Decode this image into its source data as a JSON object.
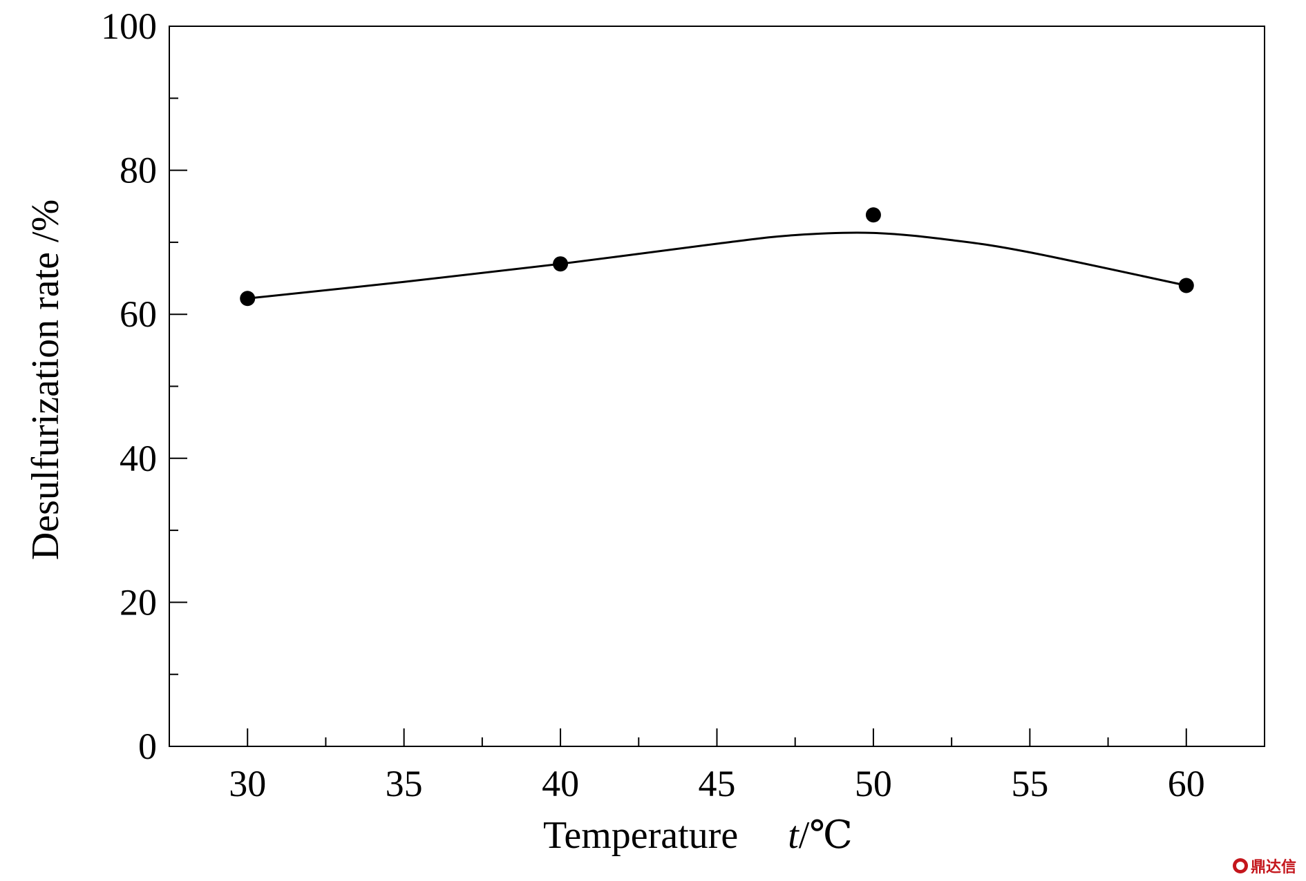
{
  "chart_data": {
    "type": "scatter",
    "title": "",
    "xlabel": "Temperature",
    "xlabel_symbol": "t",
    "xlabel_unit": "/℃",
    "ylabel": "Desulfurization rate /%",
    "xlim": [
      27.5,
      62.5
    ],
    "ylim": [
      0,
      100
    ],
    "x_ticks": [
      30,
      35,
      40,
      45,
      50,
      55,
      60
    ],
    "y_ticks": [
      0,
      20,
      40,
      60,
      80,
      100
    ],
    "grid": false,
    "legend": "none",
    "series": [
      {
        "points": [
          {
            "x": 30,
            "y": 62.2
          },
          {
            "x": 40,
            "y": 67.0
          },
          {
            "x": 50,
            "y": 73.8
          },
          {
            "x": 60,
            "y": 64.0
          }
        ]
      }
    ],
    "fit_curve": [
      {
        "x": 30,
        "y": 62.2
      },
      {
        "x": 35,
        "y": 64.5
      },
      {
        "x": 40,
        "y": 67.0
      },
      {
        "x": 45,
        "y": 69.8
      },
      {
        "x": 47.5,
        "y": 71.0
      },
      {
        "x": 50,
        "y": 71.3
      },
      {
        "x": 52.5,
        "y": 70.3
      },
      {
        "x": 55,
        "y": 68.6
      },
      {
        "x": 60,
        "y": 64.0
      }
    ]
  },
  "watermark": {
    "text": "鼎达信"
  }
}
